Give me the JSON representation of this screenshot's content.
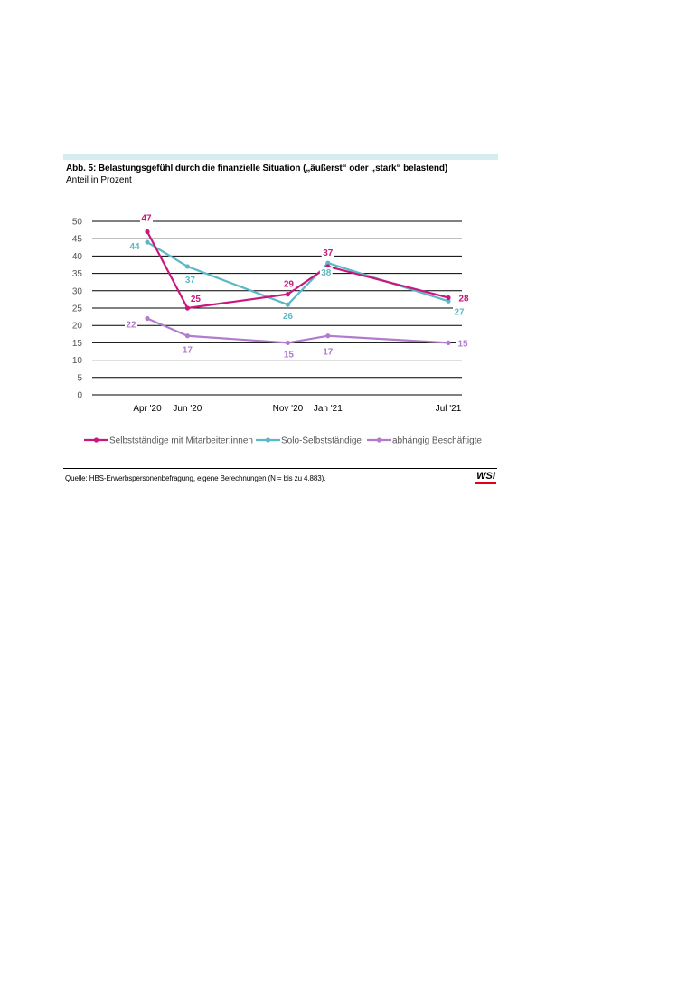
{
  "header": {
    "title": "Abb. 5: Belastungsgefühl durch die finanzielle Situation („äußerst“ oder „stark“ belastend)",
    "subtitle": "Anteil in Prozent"
  },
  "footer": {
    "source": "Quelle: HBS-Erwerbspersonenbefragung, eigene Berechnungen (N = bis zu 4.883).",
    "logo": "WSI",
    "logo_accent": "#e2001a"
  },
  "chart_data": {
    "type": "line",
    "title": "Abb. 5: Belastungsgefühl durch die finanzielle Situation („äußerst“ oder „stark“ belastend)",
    "subtitle": "Anteil in Prozent",
    "xlabel": "",
    "ylabel": "",
    "x": [
      "Apr '20",
      "Jun '20",
      "Nov '20",
      "Jan '21",
      "Jul '21"
    ],
    "x_dates": [
      "2020-04",
      "2020-06",
      "2020-11",
      "2021-01",
      "2021-07"
    ],
    "yticks": [
      0,
      5,
      10,
      15,
      20,
      25,
      30,
      35,
      40,
      45,
      50
    ],
    "ylim": [
      0,
      50
    ],
    "grid": true,
    "legend_position": "bottom",
    "series": [
      {
        "name": "Selbstständige mit Mitarbeiter:innen",
        "color": "#c8177f",
        "values": [
          47,
          25,
          29,
          37,
          28
        ]
      },
      {
        "name": "Solo-Selbstständige",
        "color": "#5bb8c6",
        "values": [
          44,
          37,
          26,
          38,
          27
        ]
      },
      {
        "name": "abhängig Beschäftigte",
        "color": "#b07ccb",
        "values": [
          22,
          17,
          15,
          17,
          15
        ]
      }
    ]
  }
}
